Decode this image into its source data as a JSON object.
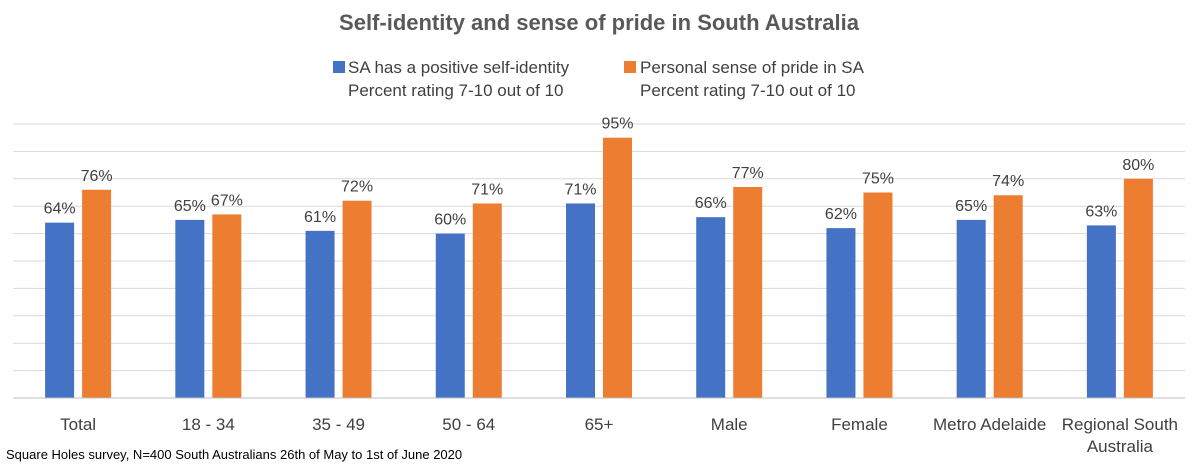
{
  "chart_data": {
    "type": "bar",
    "title": "Self-identity and sense of pride in South Australia",
    "categories": [
      [
        "Total"
      ],
      [
        "18 - 34"
      ],
      [
        "35 - 49"
      ],
      [
        "50 - 64"
      ],
      [
        "65+"
      ],
      [
        "Male"
      ],
      [
        "Female"
      ],
      [
        "Metro Adelaide"
      ],
      [
        "Regional South",
        "Australia"
      ]
    ],
    "series": [
      {
        "name": "SA has a positive self-identity",
        "subtitle": "Percent rating 7-10 out of 10",
        "color": "#4472C4",
        "values": [
          64,
          65,
          61,
          60,
          71,
          66,
          62,
          65,
          63
        ],
        "labels": [
          "64%",
          "65%",
          "61%",
          "60%",
          "71%",
          "66%",
          "62%",
          "65%",
          "63%"
        ]
      },
      {
        "name": "Personal sense of pride in SA",
        "subtitle": "Percent rating 7-10 out of 10",
        "color": "#ED7D31",
        "values": [
          76,
          67,
          72,
          71,
          95,
          77,
          75,
          74,
          80
        ],
        "labels": [
          "76%",
          "67%",
          "72%",
          "71%",
          "95%",
          "77%",
          "75%",
          "74%",
          "80%"
        ]
      }
    ],
    "ylim": [
      0,
      100
    ],
    "grid": true,
    "legend_position": "top"
  },
  "footnote": "Square Holes survey, N=400 South Australians 26th of May to 1st of June 2020"
}
